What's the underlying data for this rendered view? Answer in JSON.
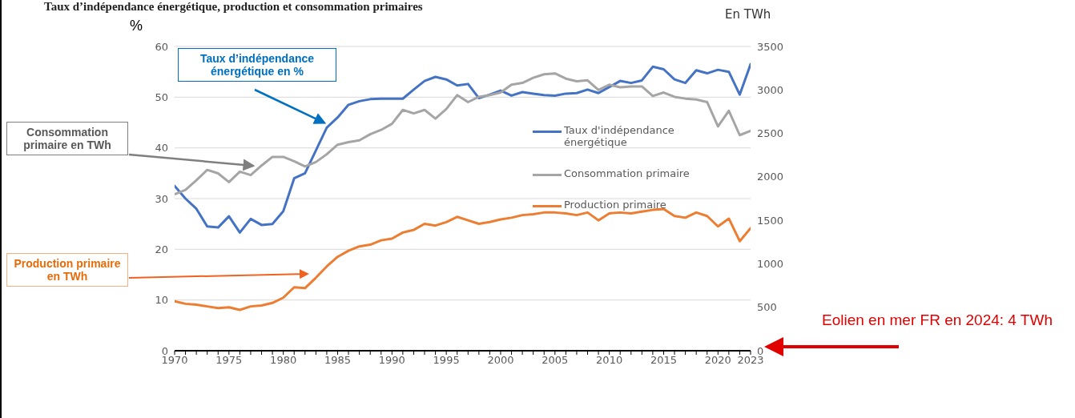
{
  "chart_data": {
    "type": "line",
    "title": "Taux d’indépendance énergétique, production et consommation primaires",
    "ylabel": "%",
    "y2label": "En TWh",
    "x": [
      1970,
      1971,
      1972,
      1973,
      1974,
      1975,
      1976,
      1977,
      1978,
      1979,
      1980,
      1981,
      1982,
      1983,
      1984,
      1985,
      1986,
      1987,
      1988,
      1989,
      1990,
      1991,
      1992,
      1993,
      1994,
      1995,
      1996,
      1997,
      1998,
      1999,
      2000,
      2001,
      2002,
      2003,
      2004,
      2005,
      2006,
      2007,
      2008,
      2009,
      2010,
      2011,
      2012,
      2013,
      2014,
      2015,
      2016,
      2017,
      2018,
      2019,
      2020,
      2021,
      2022,
      2023
    ],
    "series": [
      {
        "name": "Taux d'indépendance énergétique",
        "color": "#4472c4",
        "values": [
          32.5,
          30,
          28,
          24.5,
          24.3,
          26.5,
          23.3,
          26,
          24.8,
          25,
          27.5,
          34,
          35,
          39.5,
          44,
          46,
          48.5,
          49.2,
          49.6,
          49.7,
          49.7,
          49.7,
          51.5,
          53.2,
          54,
          53.5,
          52.3,
          52.6,
          49.8,
          50.5,
          51.3,
          50.3,
          51,
          50.7,
          50.4,
          50.3,
          50.7,
          50.8,
          51.5,
          50.8,
          52,
          53.2,
          52.8,
          53.3,
          56,
          55.5,
          53.5,
          52.8,
          55.3,
          54.7,
          55.4,
          55,
          50.5,
          56.5
        ]
      },
      {
        "name": "Consommation primaire",
        "color": "#a5a5a5",
        "axis": "y2",
        "values": [
          1800,
          1850,
          1960,
          2080,
          2040,
          1940,
          2060,
          2020,
          2130,
          2230,
          2230,
          2180,
          2120,
          2170,
          2260,
          2370,
          2400,
          2420,
          2490,
          2540,
          2610,
          2770,
          2730,
          2770,
          2670,
          2780,
          2940,
          2860,
          2920,
          2940,
          2970,
          3060,
          3080,
          3140,
          3180,
          3190,
          3130,
          3100,
          3110,
          3000,
          3060,
          3030,
          3040,
          3040,
          2930,
          2970,
          2920,
          2900,
          2890,
          2860,
          2580,
          2760,
          2480,
          2530
        ]
      },
      {
        "name": "Production primaire",
        "color": "#ed7d31",
        "axis": "y2",
        "values": [
          570,
          540,
          530,
          510,
          490,
          500,
          470,
          510,
          520,
          550,
          610,
          730,
          720,
          840,
          970,
          1080,
          1150,
          1200,
          1220,
          1270,
          1290,
          1360,
          1390,
          1460,
          1440,
          1480,
          1540,
          1500,
          1460,
          1480,
          1510,
          1530,
          1560,
          1570,
          1590,
          1590,
          1580,
          1560,
          1590,
          1500,
          1580,
          1590,
          1580,
          1600,
          1620,
          1630,
          1550,
          1530,
          1590,
          1550,
          1430,
          1520,
          1260,
          1410
        ]
      }
    ],
    "xlim": [
      1970,
      2023
    ],
    "xticks": [
      1970,
      {
        "value": 1971,
        "label": null
      },
      {
        "value": 1972,
        "label": null
      },
      {
        "value": 1973,
        "label": null
      },
      {
        "value": 1974,
        "label": null
      },
      1975,
      {
        "value": 1976,
        "label": null
      },
      {
        "value": 1977,
        "label": null
      },
      {
        "value": 1978,
        "label": null
      },
      {
        "value": 1979,
        "label": null
      },
      1980,
      {
        "value": 1981,
        "label": null
      },
      {
        "value": 1982,
        "label": null
      },
      {
        "value": 1983,
        "label": null
      },
      {
        "value": 1984,
        "label": null
      },
      1985,
      {
        "value": 1986,
        "label": null
      },
      {
        "value": 1987,
        "label": null
      },
      {
        "value": 1988,
        "label": null
      },
      {
        "value": 1989,
        "label": null
      },
      1990,
      {
        "value": 1991,
        "label": null
      },
      {
        "value": 1992,
        "label": null
      },
      {
        "value": 1993,
        "label": null
      },
      {
        "value": 1994,
        "label": null
      },
      1995,
      {
        "value": 1996,
        "label": null
      },
      {
        "value": 1997,
        "label": null
      },
      {
        "value": 1998,
        "label": null
      },
      {
        "value": 1999,
        "label": null
      },
      2000,
      {
        "value": 2001,
        "label": null
      },
      {
        "value": 2002,
        "label": null
      },
      {
        "value": 2003,
        "label": null
      },
      {
        "value": 2004,
        "label": null
      },
      2005,
      {
        "value": 2006,
        "label": null
      },
      {
        "value": 2007,
        "label": null
      },
      {
        "value": 2008,
        "label": null
      },
      {
        "value": 2009,
        "label": null
      },
      2010,
      {
        "value": 2011,
        "label": null
      },
      {
        "value": 2012,
        "label": null
      },
      {
        "value": 2013,
        "label": null
      },
      {
        "value": 2014,
        "label": null
      },
      2015,
      {
        "value": 2016,
        "label": null
      },
      {
        "value": 2017,
        "label": null
      },
      {
        "value": 2018,
        "label": null
      },
      {
        "value": 2019,
        "label": null
      },
      2020,
      {
        "value": 2021,
        "label": null
      },
      {
        "value": 2022,
        "label": null
      },
      2023
    ],
    "ylim": [
      0,
      60
    ],
    "yticks": [
      0,
      10,
      20,
      30,
      40,
      50,
      60
    ],
    "y2lim": [
      0,
      3500
    ],
    "y2ticks": [
      0,
      500,
      1000,
      1500,
      2000,
      2500,
      3000,
      3500
    ],
    "grid": "y",
    "legend": "right",
    "marker": "none",
    "line_style": "solid",
    "annotations": [
      {
        "text": "Taux d’indépendance énergétique en %",
        "x": 1984,
        "y": 44
      },
      "Consommation primaire en TWh",
      "Production primaire en TWh",
      "Eolien en mer FR en 2024: 4 TWh"
    ]
  }
}
